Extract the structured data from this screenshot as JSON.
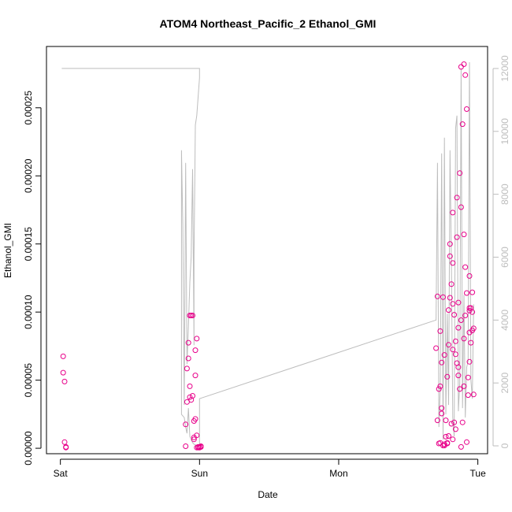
{
  "chart_data": {
    "type": "scatter",
    "title": "ATOM4 Northeast_Pacific_2 Ethanol_GMI",
    "xlabel": "Date",
    "ylabel": "Ethanol_GMI",
    "x_ticks": [
      "Sat",
      "Sun",
      "Mon",
      "Tue"
    ],
    "x_range_days": [
      -0.1,
      3.07
    ],
    "y_ticks": [
      "0.00000",
      "0.00005",
      "0.00010",
      "0.00015",
      "0.00020",
      "0.00025"
    ],
    "y_tick_values": [
      0,
      5e-05,
      0.0001,
      0.00015,
      0.0002,
      0.00025
    ],
    "ylim": [
      -4e-06,
      0.000295
    ],
    "y2_ticks": [
      "0",
      "2000",
      "4000",
      "6000",
      "8000",
      "10000",
      "12000"
    ],
    "y2_tick_values": [
      0,
      2000,
      4000,
      6000,
      8000,
      10000,
      12000
    ],
    "y2lim": [
      -250,
      12700
    ],
    "colors": {
      "points": "#e8008a",
      "line": "#bdbdbd",
      "axis": "#000000",
      "right_axis": "#bdbdbd"
    },
    "series": [
      {
        "marker": "circle",
        "x": [
          0.02,
          0.02,
          0.03,
          0.03,
          0.04,
          0.04,
          0.9,
          0.9,
          0.91,
          0.91,
          0.92,
          0.92,
          0.93,
          0.93,
          0.94,
          0.94,
          0.95,
          0.95,
          0.96,
          0.96,
          0.97,
          0.97,
          0.98,
          0.98,
          0.99,
          0.99,
          1.0,
          1.0,
          1.01,
          1.01,
          0.93,
          0.96,
          0.97,
          0.98,
          2.7,
          2.71,
          2.72,
          2.73,
          2.74,
          2.75,
          2.76,
          2.77,
          2.78,
          2.79,
          2.8,
          2.81,
          2.82,
          2.83,
          2.84,
          2.85,
          2.86,
          2.87,
          2.88,
          2.89,
          2.9,
          2.91,
          2.92,
          2.93,
          2.94,
          2.95,
          2.96,
          2.97,
          2.71,
          2.73,
          2.75,
          2.77,
          2.79,
          2.81,
          2.83,
          2.85,
          2.87,
          2.89,
          2.91,
          2.93,
          2.95,
          2.97,
          2.72,
          2.74,
          2.76,
          2.78,
          2.8,
          2.82,
          2.84,
          2.86,
          2.88,
          2.9,
          2.92,
          2.94,
          2.96,
          2.73,
          2.76,
          2.79,
          2.82,
          2.85,
          2.88,
          2.91,
          2.94,
          2.8,
          2.82,
          2.84,
          2.86,
          2.88,
          2.9,
          2.92,
          2.94,
          2.96,
          2.74,
          2.78,
          2.82,
          2.86,
          2.9,
          2.94
        ],
        "y": [
          6.75e-05,
          5.55e-05,
          4.9e-05,
          4.5e-06,
          5e-07,
          1e-06,
          1.5e-06,
          1.75e-05,
          3.4e-05,
          5.85e-05,
          7.75e-05,
          6.6e-05,
          9.75e-05,
          4.55e-05,
          3.55e-05,
          9.75e-05,
          3.85e-05,
          9.75e-05,
          8e-06,
          6.5e-06,
          2.15e-05,
          5.35e-05,
          8.05e-05,
          5e-07,
          1e-06,
          5e-07,
          1e-06,
          5e-07,
          1e-06,
          1.5e-06,
          3.75e-05,
          2e-05,
          7.2e-05,
          9.5e-06,
          7.35e-05,
          2.05e-05,
          3.5e-06,
          4e-06,
          2.55e-05,
          2e-06,
          3e-06,
          8.5e-06,
          5.25e-05,
          0.0001015,
          0.000141,
          1.8e-05,
          6.5e-06,
          9.8e-05,
          6.9e-05,
          6.25e-05,
          8.85e-05,
          4.35e-05,
          1e-06,
          1.9e-05,
          8.05e-05,
          9.75e-05,
          0.000114,
          5.2e-05,
          8.5e-05,
          7.75e-05,
          0.0001,
          3.95e-05,
          0.0001115,
          4.55e-05,
          0.000111,
          2.05e-05,
          7.6e-05,
          0.0001205,
          1.9e-05,
          0.000184,
          0.000202,
          0.000238,
          0.000274,
          3.9e-05,
          0.000103,
          8.8e-05,
          4.35e-05,
          2.95e-05,
          6.85e-05,
          4e-06,
          0.0001105,
          0.000173,
          7.85e-05,
          0.000107,
          0.00028,
          0.000282,
          0.000249,
          0.0001265,
          0.0001145,
          8.6e-05,
          2e-06,
          9e-06,
          0.000136,
          0.000155,
          0.000177,
          0.000133,
          0.000103,
          0.00015,
          0.000106,
          1.4e-05,
          5.95e-05,
          9.4e-05,
          0.000157,
          4.5e-06,
          0.000101,
          8.65e-05,
          6.3e-05,
          3.5e-06,
          7.25e-05,
          5.35e-05,
          4.55e-05,
          6.35e-05
        ]
      },
      {
        "axis": "right",
        "style": "line",
        "x": [
          0.01,
          0.01,
          0.05,
          0.05,
          1.0,
          1.0,
          0.98,
          0.97,
          0.96,
          0.96,
          0.95,
          0.94,
          0.93,
          0.92,
          0.91,
          0.9,
          0.89,
          0.88,
          0.87,
          0.87,
          0.89,
          0.9,
          0.91,
          0.92,
          0.93,
          0.94,
          0.95,
          0.96,
          0.97,
          0.98,
          0.99,
          1.0,
          1.0,
          2.7,
          2.71,
          2.72,
          2.73,
          2.74,
          2.75,
          2.76,
          2.77,
          2.78,
          2.79,
          2.8,
          2.81,
          2.82,
          2.83,
          2.84,
          2.85,
          2.86,
          2.87,
          2.88,
          2.89,
          2.9,
          2.91,
          2.92,
          2.93,
          2.94,
          2.95,
          2.96,
          2.97
        ],
        "y": [
          12000,
          12000,
          12000,
          12000,
          12000,
          11700,
          10500,
          10200,
          6000,
          3200,
          8800,
          6000,
          5200,
          3800,
          2600,
          9000,
          1300,
          7000,
          9400,
          1000,
          900,
          600,
          400,
          1200,
          300,
          200,
          100,
          50,
          30,
          20,
          10,
          10,
          1500,
          4000,
          9000,
          600,
          1800,
          9300,
          200,
          9800,
          1000,
          4200,
          1300,
          9400,
          5800,
          900,
          300,
          10100,
          10500,
          1100,
          2000,
          12000,
          1200,
          4800,
          900,
          2500,
          2700,
          12200,
          2100,
          1500,
          4500
        ]
      }
    ]
  }
}
